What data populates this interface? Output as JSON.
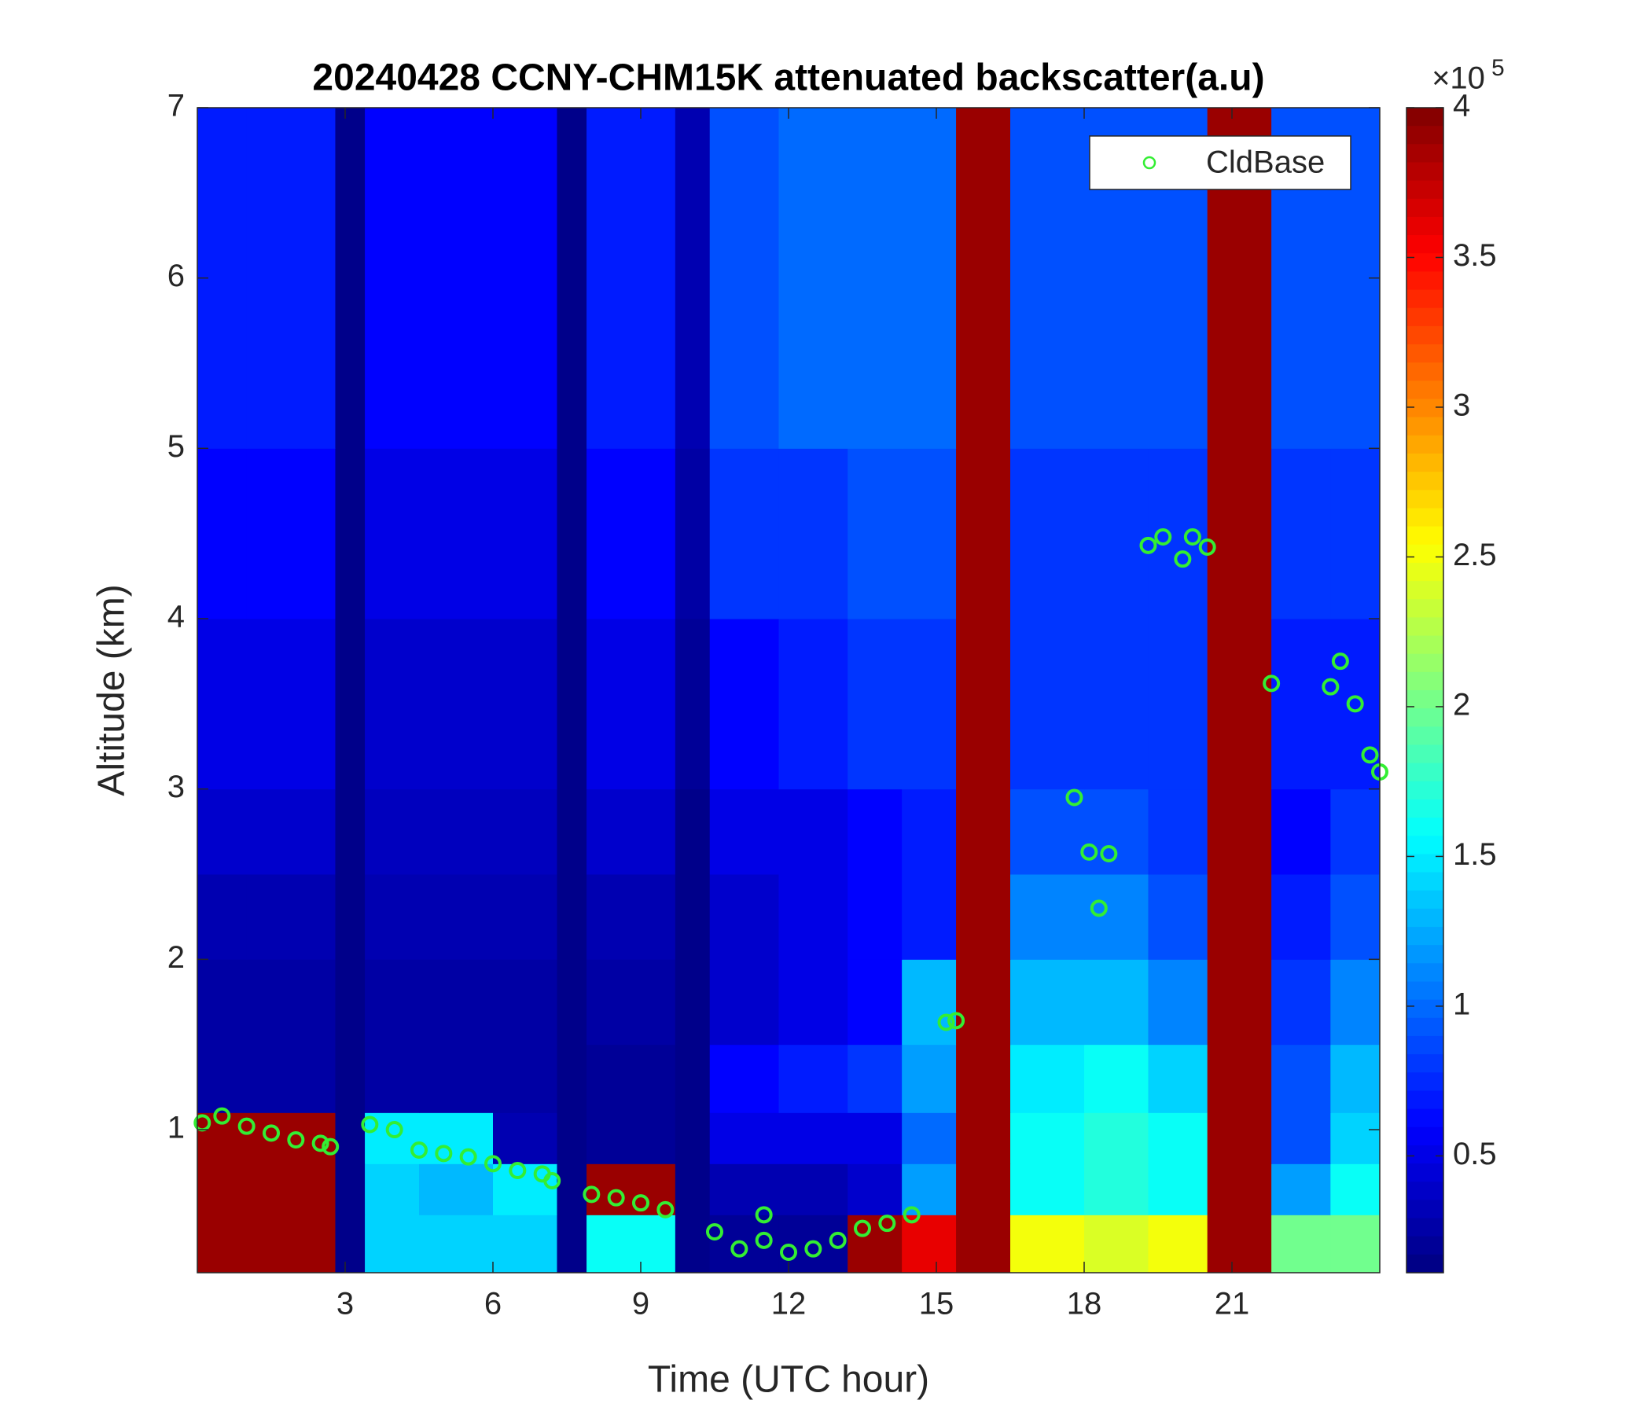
{
  "chart_data": {
    "type": "heatmap",
    "title": "20240428 CCNY-CHM15K attenuated backscatter(a.u)",
    "x_label": "Time (UTC hour)",
    "y_label": "Altitude (km)",
    "xlim": [
      0,
      24
    ],
    "ylim": [
      0.16,
      7
    ],
    "xticks": [
      3,
      6,
      9,
      12,
      15,
      18,
      21
    ],
    "yticks": [
      1,
      2,
      3,
      4,
      5,
      6,
      7
    ],
    "colormap": "jet",
    "clim": [
      0.11,
      4
    ],
    "colorbar_ticks": [
      0.5,
      1,
      1.5,
      2,
      2.5,
      3,
      3.5,
      4
    ],
    "colorbar_multiplier": "×10",
    "colorbar_exponent": 5,
    "x_bins": [
      0,
      1,
      2,
      2.8,
      3.4,
      4.5,
      6,
      7.3,
      7.9,
      9.7,
      10.4,
      11.8,
      13.2,
      14.3,
      15.4,
      16.5,
      18,
      19.3,
      20.5,
      21.8,
      23,
      24
    ],
    "y_bins": [
      0.16,
      0.5,
      0.8,
      1.1,
      1.5,
      2,
      2.5,
      3,
      4,
      5,
      7
    ],
    "values": [
      [
        3.9,
        3.9,
        3.9,
        0.15,
        1.4,
        1.4,
        1.4,
        0.15,
        1.6,
        0.15,
        0.2,
        0.2,
        3.9,
        3.6,
        3.9,
        2.5,
        2.4,
        2.5,
        3.9,
        2.0,
        2.0
      ],
      [
        3.9,
        3.9,
        3.9,
        0.15,
        1.4,
        1.3,
        1.5,
        0.15,
        3.9,
        0.15,
        0.3,
        0.3,
        0.4,
        1.2,
        3.9,
        1.6,
        1.7,
        1.6,
        3.9,
        1.2,
        1.6
      ],
      [
        3.9,
        3.9,
        3.9,
        0.15,
        1.5,
        1.5,
        0.3,
        0.15,
        0.2,
        0.15,
        0.5,
        0.5,
        0.5,
        1.0,
        3.9,
        1.6,
        1.7,
        1.6,
        3.9,
        0.9,
        1.4
      ],
      [
        0.25,
        0.25,
        0.25,
        0.15,
        0.25,
        0.25,
        0.25,
        0.15,
        0.2,
        0.15,
        0.6,
        0.7,
        0.8,
        1.2,
        3.9,
        1.5,
        1.6,
        1.4,
        3.9,
        0.9,
        1.3
      ],
      [
        0.25,
        0.25,
        0.25,
        0.15,
        0.25,
        0.25,
        0.25,
        0.15,
        0.25,
        0.15,
        0.4,
        0.5,
        0.6,
        1.3,
        3.9,
        1.3,
        1.3,
        1.1,
        3.9,
        0.8,
        1.1
      ],
      [
        0.3,
        0.3,
        0.3,
        0.15,
        0.3,
        0.3,
        0.3,
        0.15,
        0.3,
        0.15,
        0.4,
        0.5,
        0.6,
        0.7,
        3.9,
        1.1,
        1.1,
        0.9,
        3.9,
        0.7,
        0.9
      ],
      [
        0.4,
        0.4,
        0.4,
        0.15,
        0.35,
        0.35,
        0.35,
        0.15,
        0.4,
        0.15,
        0.5,
        0.5,
        0.6,
        0.7,
        3.9,
        0.9,
        0.9,
        0.8,
        3.9,
        0.6,
        0.8
      ],
      [
        0.5,
        0.5,
        0.5,
        0.15,
        0.4,
        0.4,
        0.4,
        0.15,
        0.5,
        0.2,
        0.6,
        0.7,
        0.8,
        0.8,
        3.9,
        0.8,
        0.8,
        0.8,
        3.9,
        0.7,
        0.7
      ],
      [
        0.6,
        0.6,
        0.6,
        0.15,
        0.5,
        0.5,
        0.5,
        0.15,
        0.6,
        0.25,
        0.8,
        0.8,
        0.9,
        0.9,
        3.9,
        0.8,
        0.8,
        0.8,
        3.9,
        0.8,
        0.8
      ],
      [
        0.7,
        0.7,
        0.7,
        0.15,
        0.6,
        0.6,
        0.6,
        0.15,
        0.7,
        0.3,
        0.9,
        1.0,
        1.0,
        1.0,
        3.9,
        0.9,
        0.9,
        0.9,
        3.9,
        0.9,
        0.9
      ]
    ],
    "overlay": {
      "type": "scatter",
      "name": "CldBase",
      "color": "#33ee33",
      "x": [
        0.1,
        0.5,
        1,
        1.5,
        2,
        2.5,
        2.7,
        3.5,
        4,
        4.5,
        5,
        5.5,
        6,
        6.5,
        7,
        7.2,
        8,
        8.5,
        9,
        9.5,
        10.5,
        11,
        11.5,
        11.5,
        12,
        12.5,
        13,
        13.5,
        14,
        14.5,
        15.2,
        15.4,
        17.8,
        18.1,
        18.3,
        18.5,
        19.3,
        19.6,
        20,
        20.2,
        20.5,
        21.8,
        23,
        23.2,
        23.5,
        23.8,
        24
      ],
      "y": [
        1.04,
        1.08,
        1.02,
        0.98,
        0.94,
        0.92,
        0.9,
        1.03,
        1.0,
        0.88,
        0.86,
        0.84,
        0.8,
        0.76,
        0.74,
        0.7,
        0.62,
        0.6,
        0.57,
        0.53,
        0.4,
        0.3,
        0.35,
        0.5,
        0.28,
        0.3,
        0.35,
        0.42,
        0.45,
        0.5,
        1.63,
        1.64,
        2.95,
        2.63,
        2.3,
        2.62,
        4.43,
        4.48,
        4.35,
        4.48,
        4.42,
        3.62,
        3.6,
        3.75,
        3.5,
        3.2,
        3.1
      ]
    },
    "legend_location": "northeast"
  }
}
